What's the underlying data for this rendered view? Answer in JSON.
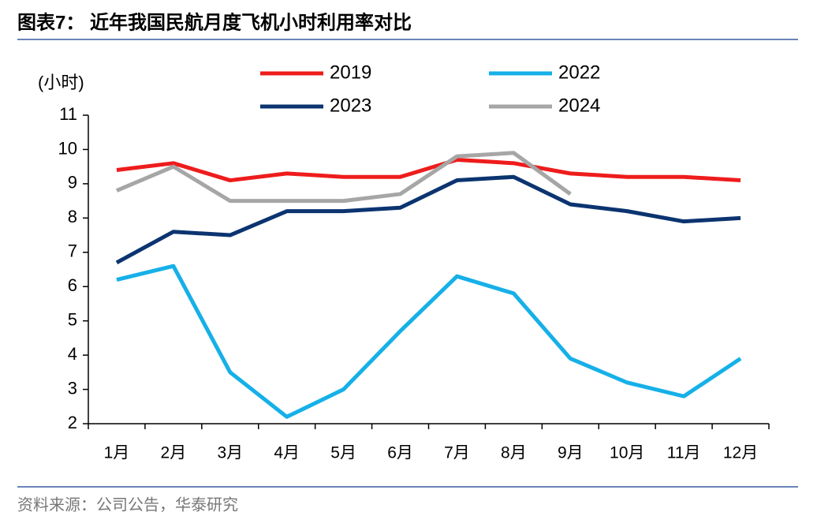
{
  "chart_data": {
    "type": "line",
    "title": "图表7：  近年我国民航月度飞机小时利用率对比",
    "y_label": "(小时)",
    "source": "资料来源：公司公告，华泰研究",
    "categories": [
      "1月",
      "2月",
      "3月",
      "4月",
      "5月",
      "6月",
      "7月",
      "8月",
      "9月",
      "10月",
      "11月",
      "12月"
    ],
    "series": [
      {
        "name": "2019",
        "color": "#ee1c1c",
        "values": [
          9.4,
          9.6,
          9.1,
          9.3,
          9.2,
          9.2,
          9.7,
          9.6,
          9.3,
          9.2,
          9.2,
          9.1
        ]
      },
      {
        "name": "2022",
        "color": "#16b0e8",
        "values": [
          6.2,
          6.6,
          3.5,
          2.2,
          3.0,
          4.7,
          6.3,
          5.8,
          3.9,
          3.2,
          2.8,
          3.9
        ]
      },
      {
        "name": "2023",
        "color": "#0b3470",
        "values": [
          6.7,
          7.6,
          7.5,
          8.2,
          8.2,
          8.3,
          9.1,
          9.2,
          8.4,
          8.2,
          7.9,
          8.0
        ]
      },
      {
        "name": "2024",
        "color": "#a6a6a6",
        "values": [
          8.8,
          9.5,
          8.5,
          8.5,
          8.5,
          8.7,
          9.8,
          9.9,
          8.7,
          null,
          null,
          null
        ]
      }
    ],
    "ylim": [
      2,
      11
    ],
    "yticks": [
      2,
      3,
      4,
      5,
      6,
      7,
      8,
      9,
      10,
      11
    ]
  }
}
